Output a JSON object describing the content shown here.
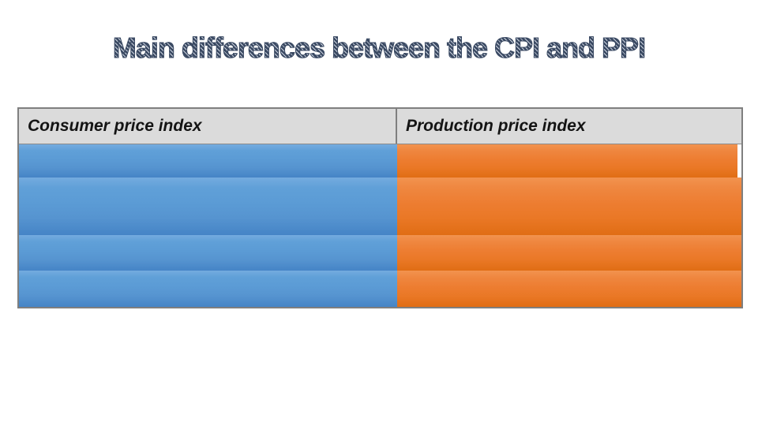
{
  "slide": {
    "title": "Main differences between the CPI and PPI"
  },
  "table": {
    "columns": [
      {
        "id": "cpi",
        "header": "Consumer price index",
        "accent": "#5B9BD5"
      },
      {
        "id": "ppi",
        "header": "Production price index",
        "accent": "#ED7D31"
      }
    ],
    "rows": [
      {
        "cpi": "",
        "ppi": ""
      },
      {
        "cpi": "",
        "ppi": ""
      },
      {
        "cpi": "",
        "ppi": ""
      },
      {
        "cpi": "",
        "ppi": ""
      }
    ]
  },
  "colors": {
    "title_text": "#3B4A63",
    "header_background": "#DBDBDB",
    "header_text": "#141414",
    "table_border": "#7F7F7F",
    "cpi_fill": "#5B9BD5",
    "ppi_fill": "#ED7D31",
    "background": "#FFFFFF"
  }
}
